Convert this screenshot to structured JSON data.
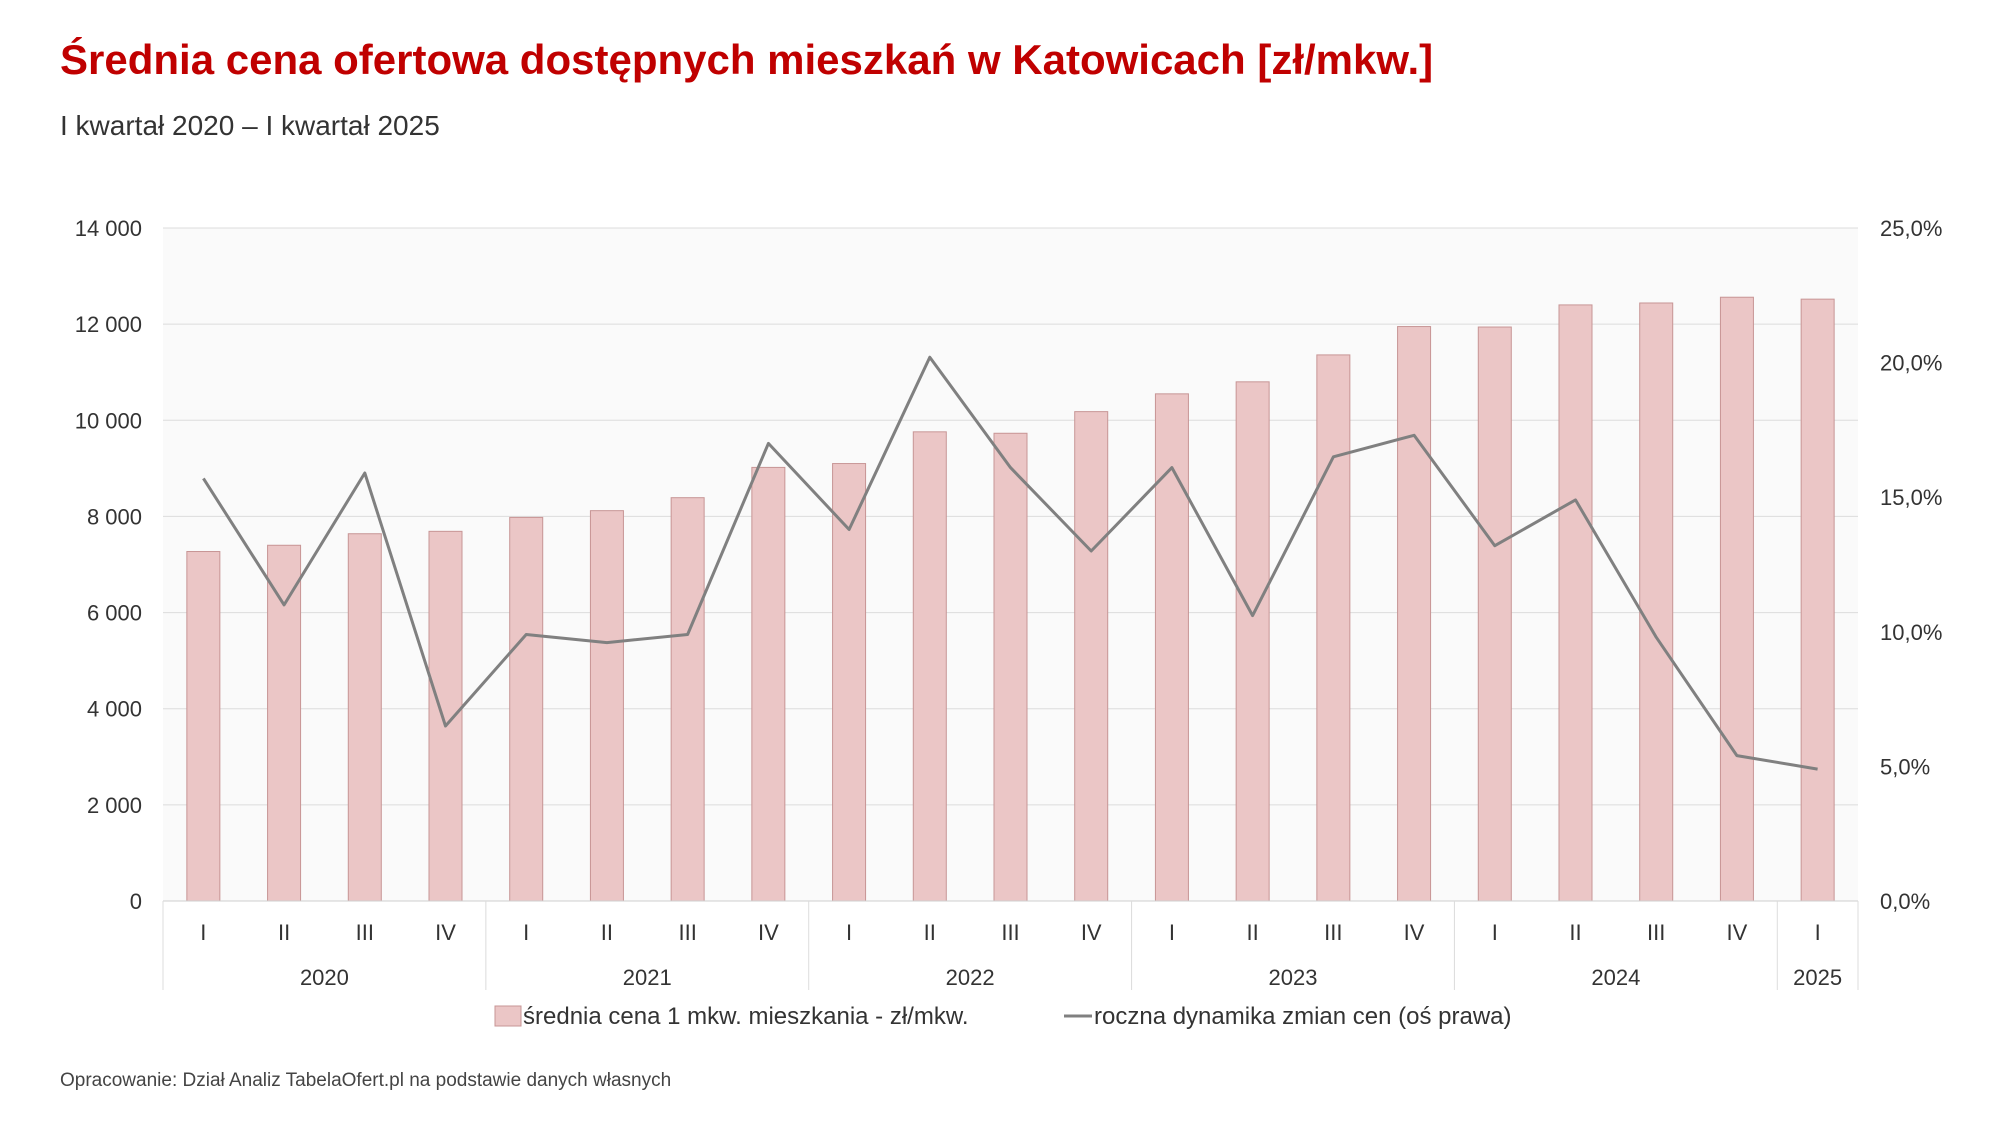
{
  "header": {
    "title": "Średnia cena ofertowa dostępnych mieszkań w Katowicach [zł/mkw.]",
    "subtitle": "I kwartał 2020 – I kwartał 2025"
  },
  "footer": {
    "source": "Opracowanie: Dział Analiz TabelaOfert.pl na podstawie danych własnych"
  },
  "colors": {
    "bar_fill": "#ebc6c6",
    "bar_stroke": "#c79595",
    "line": "#808080",
    "plot_bg": "#fafafa",
    "grid": "#dcdcdc"
  },
  "chart_data": {
    "type": "bar",
    "title": "Średnia cena ofertowa dostępnych mieszkań w Katowicach [zł/mkw.]",
    "categories": [
      "I",
      "II",
      "III",
      "IV",
      "I",
      "II",
      "III",
      "IV",
      "I",
      "II",
      "III",
      "IV",
      "I",
      "II",
      "III",
      "IV",
      "I",
      "II",
      "III",
      "IV",
      "I"
    ],
    "year_groups": [
      {
        "label": "2020",
        "count": 4
      },
      {
        "label": "2021",
        "count": 4
      },
      {
        "label": "2022",
        "count": 4
      },
      {
        "label": "2023",
        "count": 4
      },
      {
        "label": "2024",
        "count": 4
      },
      {
        "label": "2025",
        "count": 1
      }
    ],
    "series": [
      {
        "name": "średnia cena 1 mkw. mieszkania - zł/mkw.",
        "type": "bar",
        "axis": "left",
        "values": [
          7270,
          7400,
          7640,
          7690,
          7980,
          8120,
          8390,
          9020,
          9100,
          9760,
          9730,
          10180,
          10550,
          10800,
          11360,
          11950,
          11940,
          12400,
          12440,
          12560,
          12520
        ]
      },
      {
        "name": "roczna dynamika zmian cen (oś prawa)",
        "type": "line",
        "axis": "right",
        "values": [
          15.7,
          11.0,
          15.9,
          6.5,
          9.9,
          9.6,
          9.9,
          17.0,
          13.8,
          20.2,
          16.1,
          13.0,
          16.1,
          10.6,
          16.5,
          17.3,
          13.2,
          14.9,
          9.8,
          5.4,
          4.9
        ]
      }
    ],
    "y_left": {
      "min": 0,
      "max": 14000,
      "step": 2000,
      "tick_labels": [
        "0",
        "2 000",
        "4 000",
        "6 000",
        "8 000",
        "10 000",
        "12 000",
        "14 000"
      ]
    },
    "y_right": {
      "min": 0,
      "max": 25,
      "step": 5,
      "tick_labels": [
        "0,0%",
        "5,0%",
        "10,0%",
        "15,0%",
        "20,0%",
        "25,0%"
      ]
    },
    "legend_position": "bottom",
    "grid": true
  }
}
